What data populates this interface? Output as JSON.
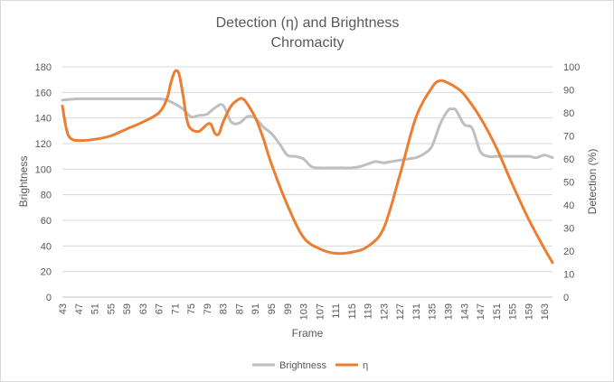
{
  "chart_data": {
    "type": "line",
    "title": "Detection (η) and Brightness",
    "subtitle": "Chromacity",
    "xlabel": "Frame",
    "ylabel_left": "Brightness",
    "ylabel_right": "Detection (%)",
    "y_left_range": [
      0,
      180
    ],
    "y_left_ticks": [
      "0",
      "20",
      "40",
      "60",
      "80",
      "100",
      "120",
      "140",
      "160",
      "180"
    ],
    "y_right_range": [
      0,
      100
    ],
    "y_right_ticks": [
      "0",
      "10",
      "20",
      "30",
      "40",
      "50",
      "60",
      "70",
      "80",
      "90",
      "100"
    ],
    "x_range": [
      43,
      165
    ],
    "x_tick_labels": [
      "43",
      "47",
      "51",
      "55",
      "59",
      "63",
      "67",
      "71",
      "75",
      "79",
      "83",
      "87",
      "91",
      "95",
      "99",
      "103",
      "107",
      "111",
      "115",
      "119",
      "123",
      "127",
      "131",
      "135",
      "139",
      "143",
      "147",
      "151",
      "155",
      "159",
      "163"
    ],
    "grid": true,
    "legend_position": "bottom",
    "series": [
      {
        "name": "Brightness",
        "axis": "left",
        "color": "#bfbfbf",
        "x": [
          43,
          47,
          51,
          55,
          59,
          63,
          67,
          69,
          71,
          73,
          75,
          77,
          79,
          81,
          83,
          85,
          87,
          89,
          91,
          93,
          95,
          97,
          99,
          101,
          103,
          105,
          107,
          109,
          111,
          113,
          115,
          117,
          119,
          121,
          123,
          125,
          127,
          129,
          131,
          133,
          135,
          137,
          139,
          140,
          141,
          143,
          145,
          147,
          149,
          151,
          155,
          159,
          161,
          163,
          165
        ],
        "values": [
          154,
          155,
          155,
          155,
          155,
          155,
          155,
          154,
          151,
          147,
          141,
          142,
          143,
          148,
          150,
          137,
          136,
          141,
          140,
          133,
          128,
          120,
          111,
          110,
          108,
          102,
          101,
          101,
          101,
          101,
          101,
          102,
          104,
          106,
          105,
          106,
          107,
          108,
          109,
          112,
          118,
          135,
          146,
          147,
          146,
          135,
          132,
          114,
          110,
          110,
          110,
          110,
          109,
          111,
          109
        ]
      },
      {
        "name": "η",
        "axis": "right",
        "color": "#ed7d31",
        "x": [
          43,
          44,
          45,
          47,
          51,
          55,
          59,
          63,
          67,
          69,
          70,
          71,
          72,
          73,
          74,
          75,
          77,
          79,
          80,
          81,
          82,
          83,
          85,
          87,
          88,
          89,
          91,
          93,
          95,
          99,
          103,
          107,
          111,
          115,
          119,
          123,
          127,
          131,
          135,
          137,
          139,
          141,
          143,
          147,
          151,
          155,
          159,
          163,
          165
        ],
        "values": [
          83,
          73,
          69,
          68,
          68.5,
          70,
          73,
          76,
          80,
          86,
          93,
          98,
          97,
          88,
          77,
          73,
          72,
          75,
          75,
          71,
          71,
          76,
          83,
          86,
          86,
          84,
          78,
          69,
          58,
          40,
          26,
          21,
          19,
          19.5,
          22,
          30,
          53,
          78,
          91,
          94,
          93,
          91,
          88,
          78,
          65,
          49,
          34,
          21,
          15
        ]
      }
    ]
  }
}
